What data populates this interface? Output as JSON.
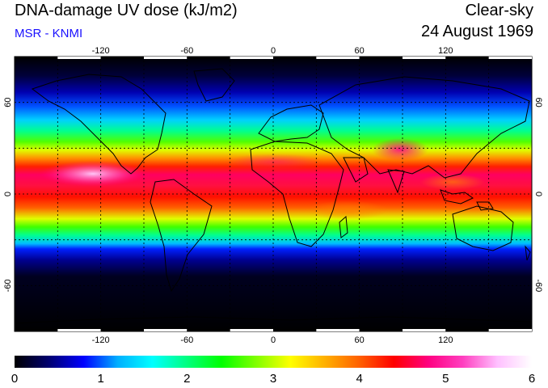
{
  "header": {
    "title": "DNA-damage UV dose (kJ/m2)",
    "subtitle": "MSR - KNMI",
    "sky": "Clear-sky",
    "date": "24 August 1969"
  },
  "map": {
    "lon_ticks": [
      -120,
      -60,
      0,
      60,
      120
    ],
    "lat_ticks": [
      60,
      0,
      -60
    ],
    "lon_range": [
      -180,
      180
    ],
    "lat_range": [
      -90,
      90
    ],
    "grid": "dotted"
  },
  "colorbar": {
    "min": 0,
    "max": 6,
    "tick_labels": [
      "0",
      "1",
      "2",
      "3",
      "4",
      "5",
      "6"
    ],
    "colors": [
      "#000000",
      "#000070",
      "#0000ff",
      "#00b0ff",
      "#00ffff",
      "#00ff80",
      "#00ff00",
      "#80ff00",
      "#ffff00",
      "#ffb000",
      "#ff6000",
      "#ff0000",
      "#ff0080",
      "#ff40c0",
      "#ffc0ff",
      "#ffffff"
    ]
  }
}
